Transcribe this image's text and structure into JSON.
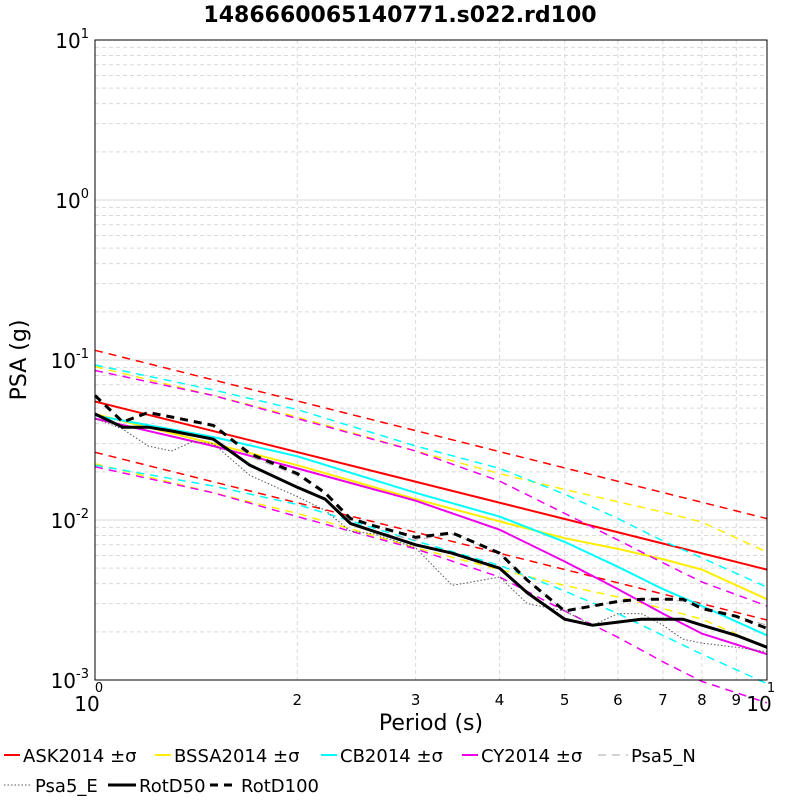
{
  "chart_data": {
    "type": "line",
    "title": "1486660065140771.s022.rd100",
    "xlabel": "Period (s)",
    "ylabel": "PSA (g)",
    "xscale": "log",
    "yscale": "log",
    "xlim": [
      1,
      10
    ],
    "ylim": [
      0.001,
      10
    ],
    "grid": true,
    "legend_position": "bottom",
    "x_major_ticks": [
      {
        "base": "10",
        "exp": "0",
        "value": 1
      },
      {
        "base": "10",
        "exp": "1",
        "value": 10
      }
    ],
    "x_minor_ticks": [
      {
        "label": "2",
        "value": 2
      },
      {
        "label": "3",
        "value": 3
      },
      {
        "label": "4",
        "value": 4
      },
      {
        "label": "5",
        "value": 5
      },
      {
        "label": "6",
        "value": 6
      },
      {
        "label": "7",
        "value": 7
      },
      {
        "label": "8",
        "value": 8
      },
      {
        "label": "9",
        "value": 9
      }
    ],
    "y_major_ticks": [
      {
        "base": "10",
        "exp": "-3",
        "value": 0.001
      },
      {
        "base": "10",
        "exp": "-2",
        "value": 0.01
      },
      {
        "base": "10",
        "exp": "-1",
        "value": 0.1
      },
      {
        "base": "10",
        "exp": "0",
        "value": 1
      },
      {
        "base": "10",
        "exp": "1",
        "value": 10
      }
    ],
    "series": [
      {
        "name": "ASK2014 ±σ",
        "color": "#ff0000",
        "style": "solid",
        "width": 2,
        "x": [
          1,
          10
        ],
        "y": [
          0.055,
          0.0049
        ]
      },
      {
        "color": "#ff0000",
        "style": "dashed",
        "width": 1.5,
        "x": [
          1,
          10
        ],
        "y": [
          0.115,
          0.0102
        ]
      },
      {
        "color": "#ff0000",
        "style": "dashed",
        "width": 1.5,
        "x": [
          1,
          10
        ],
        "y": [
          0.0265,
          0.00237
        ]
      },
      {
        "name": "BSSA2014 ±σ",
        "color": "#ffee00",
        "style": "solid",
        "width": 2,
        "x": [
          1,
          1.5,
          2,
          3,
          4,
          5,
          6,
          7,
          8,
          10
        ],
        "y": [
          0.046,
          0.03,
          0.022,
          0.0135,
          0.0098,
          0.0077,
          0.0066,
          0.0057,
          0.0049,
          0.0032
        ]
      },
      {
        "color": "#ffee00",
        "style": "dashed",
        "width": 1.5,
        "x": [
          1,
          1.5,
          2,
          3,
          4,
          5,
          6,
          7,
          8,
          10
        ],
        "y": [
          0.091,
          0.06,
          0.044,
          0.027,
          0.0195,
          0.0155,
          0.013,
          0.0112,
          0.0097,
          0.0063
        ]
      },
      {
        "color": "#ffee00",
        "style": "dashed",
        "width": 1.5,
        "x": [
          1,
          1.5,
          2,
          3,
          4,
          5,
          6,
          7,
          8,
          10
        ],
        "y": [
          0.0225,
          0.0148,
          0.011,
          0.0067,
          0.0049,
          0.0039,
          0.0033,
          0.0028,
          0.0024,
          0.0016
        ]
      },
      {
        "name": "CB2014 ±σ",
        "color": "#00ffff",
        "style": "solid",
        "width": 2,
        "x": [
          1,
          1.5,
          2,
          3,
          4,
          5,
          6,
          7,
          8,
          10
        ],
        "y": [
          0.045,
          0.033,
          0.025,
          0.0148,
          0.0105,
          0.0073,
          0.0051,
          0.0037,
          0.0029,
          0.0019
        ]
      },
      {
        "color": "#00ffff",
        "style": "dashed",
        "width": 1.5,
        "x": [
          1,
          1.5,
          2,
          3,
          4,
          5,
          6,
          7,
          8,
          10
        ],
        "y": [
          0.093,
          0.065,
          0.049,
          0.029,
          0.021,
          0.0145,
          0.0102,
          0.0074,
          0.0058,
          0.0038
        ]
      },
      {
        "color": "#00ffff",
        "style": "dashed",
        "width": 1.5,
        "x": [
          1,
          1.5,
          2,
          3,
          4,
          5,
          6,
          7,
          8,
          10
        ],
        "y": [
          0.022,
          0.0163,
          0.0125,
          0.0074,
          0.0052,
          0.0036,
          0.0026,
          0.0019,
          0.00145,
          0.00095
        ]
      },
      {
        "name": "CY2014 ±σ",
        "color": "#ee00ee",
        "style": "solid",
        "width": 2,
        "x": [
          1,
          1.5,
          2,
          3,
          4,
          5,
          6,
          7,
          8,
          10
        ],
        "y": [
          0.043,
          0.029,
          0.021,
          0.0132,
          0.0087,
          0.0055,
          0.0037,
          0.0026,
          0.00195,
          0.00145
        ]
      },
      {
        "color": "#ee00ee",
        "style": "dashed",
        "width": 1.5,
        "x": [
          1,
          1.5,
          2,
          3,
          4,
          5,
          6,
          7,
          8,
          10
        ],
        "y": [
          0.086,
          0.06,
          0.043,
          0.027,
          0.0175,
          0.011,
          0.0075,
          0.0054,
          0.0041,
          0.0029
        ]
      },
      {
        "color": "#ee00ee",
        "style": "dashed",
        "width": 1.5,
        "x": [
          1,
          1.5,
          2,
          3,
          4,
          5,
          6,
          7,
          8,
          10
        ],
        "y": [
          0.0215,
          0.0148,
          0.0105,
          0.0066,
          0.0044,
          0.0027,
          0.00185,
          0.0013,
          0.00098,
          0.00072
        ]
      },
      {
        "name": "Psa5_N",
        "color": "#aaaaaa",
        "style": "dashed",
        "width": 1,
        "x": [
          1,
          1.1,
          1.2,
          1.3,
          1.5,
          1.7,
          2,
          2.2,
          2.4,
          2.6,
          3,
          3.4,
          4,
          4.4,
          5,
          5.5,
          6,
          6.5,
          7,
          7.5,
          8,
          9,
          10
        ],
        "y": [
          0.06,
          0.041,
          0.047,
          0.044,
          0.039,
          0.025,
          0.019,
          0.0145,
          0.0098,
          0.0085,
          0.0075,
          0.0082,
          0.0062,
          0.0042,
          0.0027,
          0.0029,
          0.0031,
          0.0032,
          0.0032,
          0.0031,
          0.0028,
          0.0025,
          0.0022
        ]
      },
      {
        "name": "Psa5_E",
        "color": "#555555",
        "style": "dotted",
        "width": 1,
        "x": [
          1,
          1.1,
          1.2,
          1.3,
          1.4,
          1.5,
          1.7,
          2,
          2.2,
          2.4,
          2.6,
          3,
          3.4,
          4,
          4.4,
          5,
          5.5,
          6,
          6.5,
          7,
          7.5,
          8,
          9,
          10
        ],
        "y": [
          0.043,
          0.037,
          0.029,
          0.027,
          0.031,
          0.03,
          0.019,
          0.014,
          0.0115,
          0.0085,
          0.0082,
          0.0067,
          0.0039,
          0.0044,
          0.003,
          0.0027,
          0.0022,
          0.0026,
          0.0026,
          0.0022,
          0.0018,
          0.0017,
          0.0016,
          0.0015
        ]
      },
      {
        "name": "RotD50",
        "color": "#000000",
        "style": "solid",
        "width": 3,
        "x": [
          1,
          1.1,
          1.2,
          1.3,
          1.5,
          1.7,
          2,
          2.2,
          2.4,
          2.6,
          3,
          3.4,
          4,
          4.4,
          5,
          5.5,
          6,
          6.5,
          7,
          7.5,
          8,
          9,
          10
        ],
        "y": [
          0.046,
          0.038,
          0.038,
          0.036,
          0.032,
          0.022,
          0.016,
          0.0135,
          0.0095,
          0.0085,
          0.007,
          0.0062,
          0.005,
          0.0035,
          0.0024,
          0.0022,
          0.0023,
          0.0024,
          0.0024,
          0.0024,
          0.0022,
          0.0019,
          0.0016
        ]
      },
      {
        "name": "RotD100",
        "color": "#000000",
        "style": "dashed",
        "width": 3,
        "x": [
          1,
          1.1,
          1.2,
          1.3,
          1.5,
          1.7,
          2,
          2.2,
          2.4,
          2.6,
          3,
          3.4,
          4,
          4.4,
          5,
          5.5,
          6,
          6.5,
          7,
          7.5,
          8,
          9,
          10
        ],
        "y": [
          0.06,
          0.041,
          0.047,
          0.044,
          0.039,
          0.026,
          0.0195,
          0.0148,
          0.0102,
          0.0092,
          0.0078,
          0.0083,
          0.0062,
          0.0042,
          0.0027,
          0.0029,
          0.0031,
          0.0032,
          0.0032,
          0.0032,
          0.0028,
          0.0025,
          0.0021
        ]
      }
    ]
  }
}
